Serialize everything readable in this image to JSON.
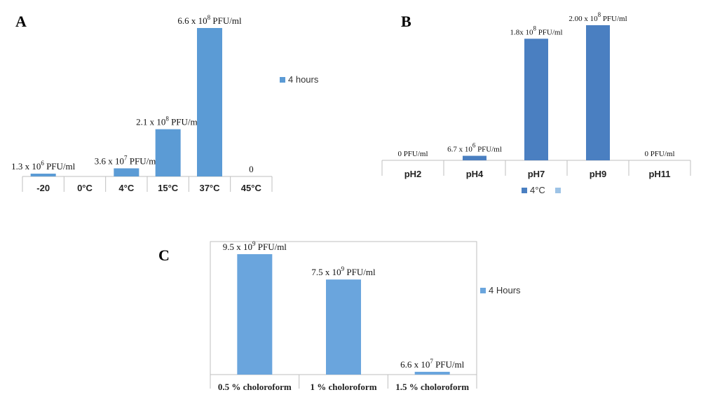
{
  "colors": {
    "bar_a": "#5b9bd5",
    "bar_b": "#4a7fc1",
    "bar_c": "#6aa5dd",
    "axis": "#bfbfbf",
    "legend_b_secondary": "#9dc3e6"
  },
  "chart_data": [
    {
      "panel": "A",
      "type": "bar",
      "categories": [
        "-20",
        "0°C",
        "4°C",
        "15°C",
        "37°C",
        "45°C"
      ],
      "values": [
        1300000,
        0,
        36000000,
        210000000,
        660000000,
        0
      ],
      "bar_labels": [
        {
          "base": "1.3 x 10",
          "exp": "6",
          "unit": " PFU/ml"
        },
        {
          "base": "",
          "exp": "",
          "unit": ""
        },
        {
          "base": "3.6 x 10",
          "exp": "7",
          "unit": " PFU/ml"
        },
        {
          "base": "2.1 x 10",
          "exp": "8",
          "unit": " PFU/ml"
        },
        {
          "base": "6.6 x 10",
          "exp": "8",
          "unit": " PFU/ml"
        },
        {
          "base": "0",
          "exp": "",
          "unit": ""
        }
      ],
      "legend": [
        "4 hours"
      ],
      "ylim": [
        0,
        660000000
      ]
    },
    {
      "panel": "B",
      "type": "bar",
      "categories": [
        "pH2",
        "pH4",
        "pH7",
        "pH9",
        "pH11"
      ],
      "values": [
        0,
        6700000,
        180000000,
        200000000,
        0
      ],
      "bar_labels": [
        {
          "base": "0 PFU/ml",
          "exp": "",
          "unit": ""
        },
        {
          "base": "6.7 x  10",
          "exp": "6",
          "unit": " PFU/ml"
        },
        {
          "base": "1.8x 10",
          "exp": "8",
          "unit": " PFU/ml"
        },
        {
          "base": "2.00 x  10",
          "exp": "8",
          "unit": " PFU/ml"
        },
        {
          "base": "0 PFU/ml",
          "exp": "",
          "unit": ""
        }
      ],
      "legend": [
        "4°C",
        ""
      ],
      "ylim": [
        0,
        200000000
      ]
    },
    {
      "panel": "C",
      "type": "bar",
      "categories": [
        "0.5 % choloroform",
        "1 % choloroform",
        "1.5 % choloroform"
      ],
      "values": [
        9500000000,
        7500000000,
        66000000
      ],
      "bar_labels": [
        {
          "base": "9.5 x 10",
          "exp": "9",
          "unit": " PFU/ml"
        },
        {
          "base": "7.5 x 10",
          "exp": "9",
          "unit": " PFU/ml"
        },
        {
          "base": "6.6 x 10",
          "exp": "7",
          "unit": " PFU/ml"
        }
      ],
      "legend": [
        "4 Hours"
      ],
      "ylim": [
        0,
        9500000000
      ]
    }
  ]
}
